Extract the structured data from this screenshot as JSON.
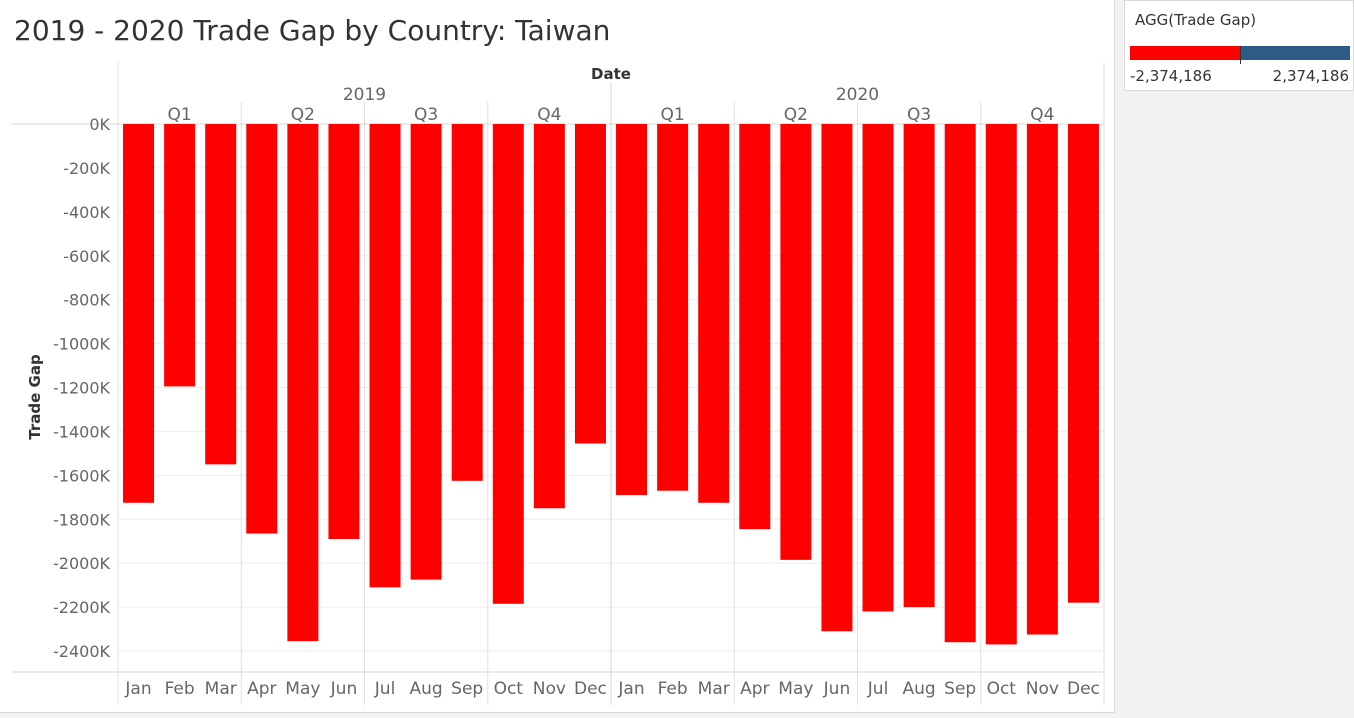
{
  "title": "2019 - 2020 Trade Gap by Country: Taiwan",
  "legend": {
    "title": "AGG(Trade Gap)",
    "min_label": "-2,374,186",
    "max_label": "2,374,186",
    "negative_color": "#ff0000",
    "positive_color": "#2e5a87"
  },
  "chart_data": {
    "type": "bar",
    "title": "2019 - 2020 Trade Gap by Country: Taiwan",
    "xlabel": "Date",
    "ylabel": "Trade Gap",
    "ylim": [
      -2500000,
      0
    ],
    "grid": true,
    "bar_color": "#ff0000",
    "years": [
      "2019",
      "2020"
    ],
    "quarters": [
      "Q1",
      "Q2",
      "Q3",
      "Q4"
    ],
    "months": [
      "Jan",
      "Feb",
      "Mar",
      "Apr",
      "May",
      "Jun",
      "Jul",
      "Aug",
      "Sep",
      "Oct",
      "Nov",
      "Dec"
    ],
    "yticks": [
      0,
      -200000,
      -400000,
      -600000,
      -800000,
      -1000000,
      -1200000,
      -1400000,
      -1600000,
      -1800000,
      -2000000,
      -2200000,
      -2400000
    ],
    "ytick_labels": [
      "0K",
      "-200K",
      "-400K",
      "-600K",
      "-800K",
      "-1000K",
      "-1200K",
      "-1400K",
      "-1600K",
      "-1800K",
      "-2000K",
      "-2200K",
      "-2400K"
    ],
    "series": [
      {
        "values": [
          -1725000,
          -1195000,
          -1550000,
          -1865000,
          -2355000,
          -1890000,
          -2110000,
          -2075000,
          -1625000,
          -2185000,
          -1750000,
          -1455000,
          -1690000,
          -1670000,
          -1725000,
          -1845000,
          -1985000,
          -2310000,
          -2220000,
          -2200000,
          -2360000,
          -2370000,
          -2325000,
          -2180000
        ]
      }
    ]
  }
}
